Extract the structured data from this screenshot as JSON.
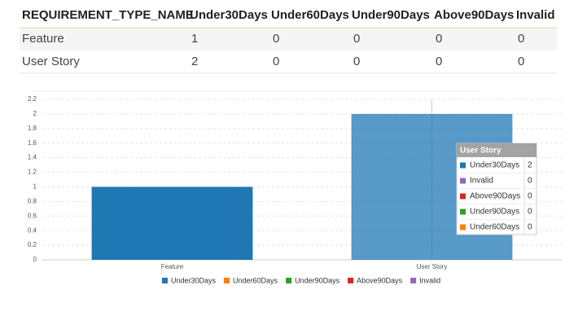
{
  "table": {
    "header": [
      "REQUIREMENT_TYPE_NAME",
      "Under30Days",
      "Under60Days",
      "Under90Days",
      "Above90Days",
      "Invalid"
    ],
    "rows": [
      [
        "Feature",
        1,
        0,
        0,
        0,
        0
      ],
      [
        "User Story",
        2,
        0,
        0,
        0,
        0
      ]
    ]
  },
  "chart_data": {
    "type": "bar",
    "stacked": true,
    "categories": [
      "Feature",
      "User Story"
    ],
    "series": [
      {
        "name": "Under30Days",
        "color": "#1f77b4",
        "values": [
          1,
          2
        ]
      },
      {
        "name": "Under60Days",
        "color": "#ff7f0e",
        "values": [
          0,
          0
        ]
      },
      {
        "name": "Under90Days",
        "color": "#2ca02c",
        "values": [
          0,
          0
        ]
      },
      {
        "name": "Above90Days",
        "color": "#d62728",
        "values": [
          0,
          0
        ]
      },
      {
        "name": "Invalid",
        "color": "#9467bd",
        "values": [
          0,
          0
        ]
      }
    ],
    "ylim": [
      0,
      2.2
    ],
    "yticks": [
      0,
      0.2,
      0.4,
      0.6,
      0.8,
      1,
      1.2,
      1.4,
      1.6,
      1.8,
      2,
      2.2
    ],
    "grid": true,
    "legend": "bottom",
    "tooltip": {
      "category": 1
    }
  }
}
